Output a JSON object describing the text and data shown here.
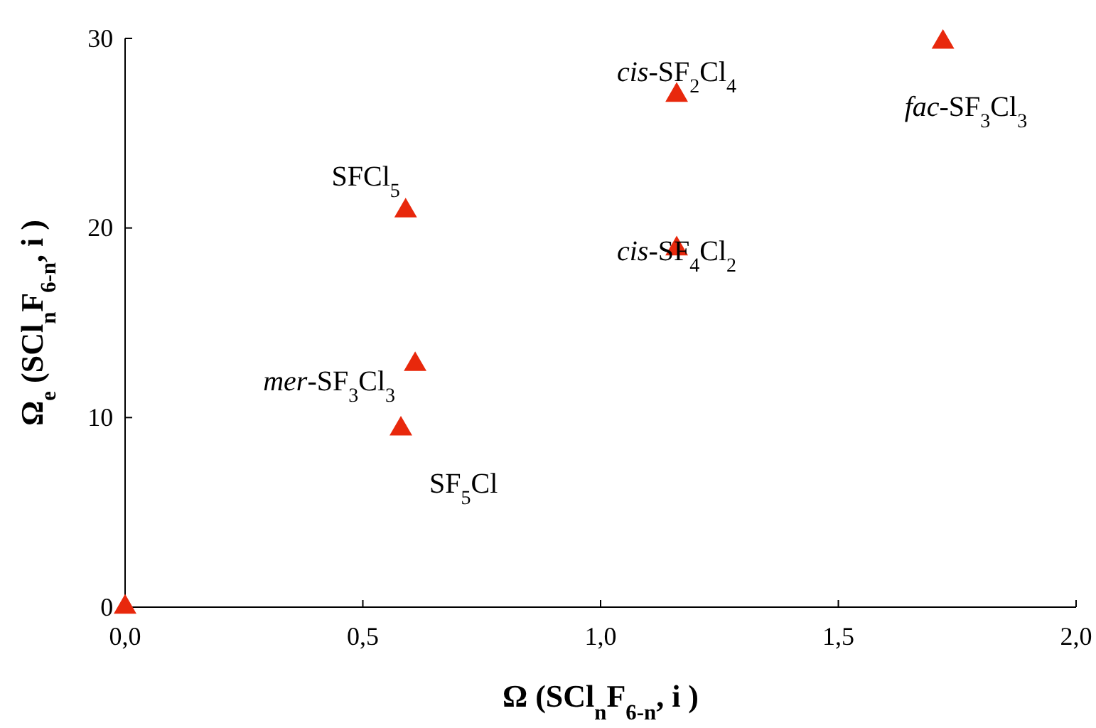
{
  "chart_data": {
    "type": "scatter",
    "xlabel": "Ω (SCl$_{n}$F$_{6-n}$, i )",
    "ylabel": "Ω$_{e}$ (SCl$_{n}$F$_{6-n}$, i )",
    "x": [
      0,
      0.59,
      0.61,
      0.58,
      1.16,
      1.16,
      1.72
    ],
    "series": [
      {
        "color": "#e8280c",
        "values": [
          0,
          20.9,
          12.8,
          9.4,
          18.9,
          27.0,
          29.8
        ]
      }
    ],
    "marker": "triangle",
    "grid": false,
    "xlim": [
      0,
      2
    ],
    "xticks": [
      {
        "value": 0,
        "label": "0,0"
      },
      {
        "value": 0.5,
        "label": "0,5"
      },
      {
        "value": 1,
        "label": "1,0"
      },
      {
        "value": 1.5,
        "label": "1,5"
      },
      {
        "value": 2,
        "label": "2,0"
      }
    ],
    "ylim": [
      0,
      30
    ],
    "yticks": [
      0,
      10,
      20,
      30
    ],
    "annotations": [
      {
        "text": "SFCl$_{5}$",
        "x": 0.59,
        "y": 20.9
      },
      {
        "text": "mer-SF$_{3}$Cl$_{3}$",
        "x": 0.61,
        "y": 12.8
      },
      {
        "text": "SF$_{5}$Cl",
        "x": 0.58,
        "y": 9.4
      },
      {
        "text": "cis-SF$_{4}$Cl$_{2}$",
        "x": 1.16,
        "y": 18.9
      },
      {
        "text": "cis-SF$_{2}$Cl$_{4}$",
        "x": 1.16,
        "y": 27.0
      },
      {
        "text": "fac-SF$_{3}$Cl$_{3}$",
        "x": 1.72,
        "y": 29.8
      }
    ]
  }
}
